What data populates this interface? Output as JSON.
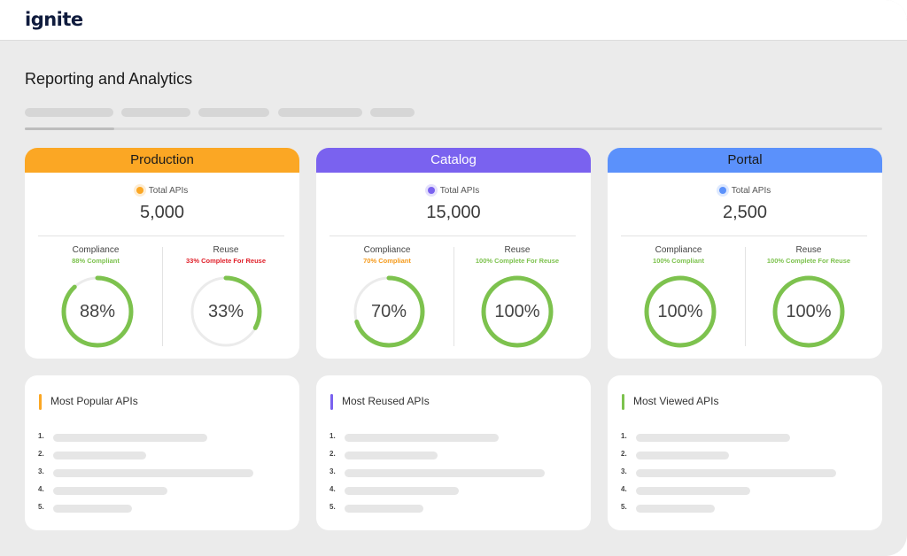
{
  "app": {
    "logo": "ignite"
  },
  "page": {
    "title": "Reporting and Analytics"
  },
  "colors": {
    "production": "#fba724",
    "catalog": "#7a62ef",
    "portal": "#5b91fb",
    "green": "#7dc24e",
    "orange": "#f59a1b",
    "red": "#e0202a",
    "track": "#ebebeb"
  },
  "cards": [
    {
      "name": "Production",
      "total_label": "Total APIs",
      "total_value": "5,000",
      "compliance": {
        "title": "Compliance",
        "status": "88% Compliant",
        "value_label": "88%",
        "percent": 88
      },
      "reuse": {
        "title": "Reuse",
        "status": "33% Complete For Reuse",
        "value_label": "33%",
        "percent": 33
      }
    },
    {
      "name": "Catalog",
      "total_label": "Total APIs",
      "total_value": "15,000",
      "compliance": {
        "title": "Compliance",
        "status": "70% Compliant",
        "value_label": "70%",
        "percent": 70
      },
      "reuse": {
        "title": "Reuse",
        "status": "100% Complete For Reuse",
        "value_label": "100%",
        "percent": 100
      }
    },
    {
      "name": "Portal",
      "total_label": "Total APIs",
      "total_value": "2,500",
      "compliance": {
        "title": "Compliance",
        "status": "100% Compliant",
        "value_label": "100%",
        "percent": 100
      },
      "reuse": {
        "title": "Reuse",
        "status": "100% Complete For Reuse",
        "value_label": "100%",
        "percent": 100
      }
    }
  ],
  "lists": [
    {
      "title": "Most Popular APIs",
      "numbers": [
        "1.",
        "2.",
        "3.",
        "4.",
        "5."
      ]
    },
    {
      "title": "Most Reused APIs",
      "numbers": [
        "1.",
        "2.",
        "3.",
        "4.",
        "5."
      ]
    },
    {
      "title": "Most Viewed APIs",
      "numbers": [
        "1.",
        "2.",
        "3.",
        "4.",
        "5."
      ]
    }
  ]
}
